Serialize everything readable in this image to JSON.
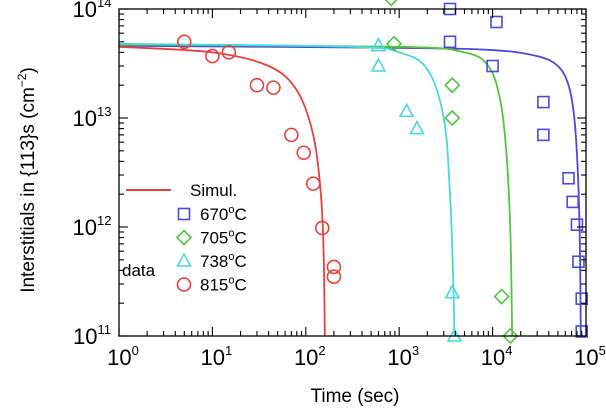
{
  "chart_data": {
    "type": "scatter",
    "title": "",
    "xlabel": "Time (sec)",
    "ylabel": "Interstitials in {113}s (cm",
    "ylabel_sup": "−2",
    "ylabel_close": ")",
    "xscale": "log",
    "yscale": "log",
    "xlim": [
      1,
      100000
    ],
    "ylim": [
      100000000000,
      100000000000000
    ],
    "grid": false,
    "legend_placement": "lower-left",
    "x_ticks": [
      {
        "value": 1,
        "base": "10",
        "exp": "0"
      },
      {
        "value": 10,
        "base": "10",
        "exp": "1"
      },
      {
        "value": 100,
        "base": "10",
        "exp": "2"
      },
      {
        "value": 1000,
        "base": "10",
        "exp": "3"
      },
      {
        "value": 10000,
        "base": "10",
        "exp": "4"
      },
      {
        "value": 100000,
        "base": "10",
        "exp": "5"
      }
    ],
    "y_ticks": [
      {
        "value": 100000000000,
        "base": "10",
        "exp": "11"
      },
      {
        "value": 1000000000000,
        "base": "10",
        "exp": "12"
      },
      {
        "value": 10000000000000,
        "base": "10",
        "exp": "13"
      },
      {
        "value": 100000000000000,
        "base": "10",
        "exp": "14"
      }
    ],
    "legend": {
      "line_label": "Simul.",
      "group_label": "data",
      "line_color": "#e8403c"
    },
    "series": [
      {
        "name": "670°C",
        "temp": "670",
        "unit": "C",
        "color": "#4a4ad8",
        "marker": "square",
        "points": [
          [
            3500,
            100000000000000
          ],
          [
            11000,
            76000000000000
          ],
          [
            3500,
            50000000000000
          ],
          [
            10000,
            30000000000000
          ],
          [
            35000,
            14000000000000
          ],
          [
            35000,
            7000000000000
          ],
          [
            65000,
            2800000000000
          ],
          [
            72000,
            1700000000000
          ],
          [
            80000,
            1050000000000
          ],
          [
            83000,
            480000000000
          ],
          [
            90000,
            220000000000
          ],
          [
            90000,
            110000000000
          ]
        ],
        "simulation": [
          [
            1,
            46000000000000
          ],
          [
            1000,
            44000000000000
          ],
          [
            10000,
            42000000000000
          ],
          [
            30000,
            37000000000000
          ],
          [
            50000,
            30000000000000
          ],
          [
            65000,
            20000000000000
          ],
          [
            75000,
            10000000000000
          ],
          [
            82000,
            3000000000000
          ],
          [
            86000,
            700000000000
          ],
          [
            88000,
            100000000000
          ]
        ]
      },
      {
        "name": "705°C",
        "temp": "705",
        "unit": "C",
        "color": "#52c63c",
        "marker": "diamond",
        "points": [
          [
            820,
            125000000000000
          ],
          [
            880,
            48000000000000
          ],
          [
            3700,
            20000000000000
          ],
          [
            3700,
            10000000000000
          ],
          [
            12500,
            230000000000
          ],
          [
            15500,
            100000000000
          ]
        ],
        "simulation": [
          [
            1,
            47000000000000
          ],
          [
            1000,
            45000000000000
          ],
          [
            5000,
            40000000000000
          ],
          [
            9000,
            30000000000000
          ],
          [
            12000,
            15000000000000
          ],
          [
            14000,
            5000000000000
          ],
          [
            15500,
            900000000000
          ],
          [
            16200,
            100000000000
          ]
        ]
      },
      {
        "name": "738°C",
        "temp": "738",
        "unit": "C",
        "color": "#48d8e0",
        "marker": "triangle",
        "points": [
          [
            600,
            46000000000000
          ],
          [
            600,
            30000000000000
          ],
          [
            1200,
            11500000000000
          ],
          [
            1550,
            8000000000000
          ],
          [
            3700,
            250000000000
          ],
          [
            3900,
            100000000000
          ]
        ],
        "simulation": [
          [
            1,
            48000000000000
          ],
          [
            300,
            45000000000000
          ],
          [
            1000,
            40000000000000
          ],
          [
            2000,
            28000000000000
          ],
          [
            3000,
            10000000000000
          ],
          [
            3500,
            2000000000000
          ],
          [
            3800,
            300000000000
          ],
          [
            3900,
            100000000000
          ]
        ]
      },
      {
        "name": "815°C",
        "temp": "815",
        "unit": "C",
        "color": "#e8403c",
        "marker": "circle",
        "points": [
          [
            5,
            50000000000000
          ],
          [
            10,
            37000000000000
          ],
          [
            15,
            40000000000000
          ],
          [
            30,
            20000000000000
          ],
          [
            45,
            19000000000000
          ],
          [
            70,
            7000000000000
          ],
          [
            95,
            4800000000000
          ],
          [
            120,
            2500000000000
          ],
          [
            150,
            980000000000
          ],
          [
            200,
            430000000000
          ],
          [
            200,
            350000000000
          ]
        ],
        "simulation": [
          [
            1,
            45000000000000
          ],
          [
            10,
            40000000000000
          ],
          [
            40,
            30000000000000
          ],
          [
            80,
            18000000000000
          ],
          [
            120,
            7000000000000
          ],
          [
            145,
            2000000000000
          ],
          [
            155,
            600000000000
          ],
          [
            160,
            100000000000
          ]
        ]
      }
    ]
  }
}
